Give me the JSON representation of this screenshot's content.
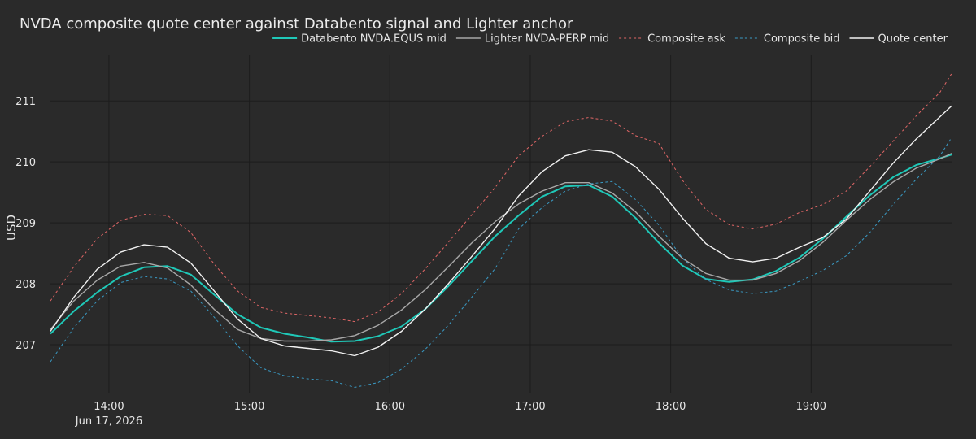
{
  "chart_data": {
    "type": "line",
    "title": "NVDA composite quote center against Databento signal and Lighter anchor",
    "xlabel": "",
    "ylabel": "USD",
    "x_range": [
      "13:35",
      "20:00"
    ],
    "x_ticks": [
      "14:00",
      "15:00",
      "16:00",
      "17:00",
      "18:00",
      "19:00"
    ],
    "x_date_label": "Jun 17, 2026",
    "ylim": [
      206.2,
      211.75
    ],
    "y_ticks": [
      207,
      208,
      209,
      210,
      211
    ],
    "grid": true,
    "legend_position": "top-right",
    "x": [
      "13:35",
      "13:45",
      "13:55",
      "14:05",
      "14:15",
      "14:25",
      "14:35",
      "14:45",
      "14:55",
      "15:05",
      "15:15",
      "15:25",
      "15:35",
      "15:45",
      "15:55",
      "16:05",
      "16:15",
      "16:25",
      "16:35",
      "16:45",
      "16:55",
      "17:05",
      "17:15",
      "17:25",
      "17:35",
      "17:45",
      "17:55",
      "18:05",
      "18:15",
      "18:25",
      "18:35",
      "18:45",
      "18:55",
      "19:05",
      "19:15",
      "19:25",
      "19:35",
      "19:45",
      "19:55",
      "20:00"
    ],
    "series": [
      {
        "name": "Databento NVDA.EQUS mid",
        "color": "#1fc8b8",
        "dash": "solid",
        "values": [
          207.18,
          207.55,
          207.86,
          208.12,
          208.27,
          208.29,
          208.15,
          207.82,
          207.5,
          207.28,
          207.18,
          207.12,
          207.05,
          207.06,
          207.14,
          207.3,
          207.58,
          207.96,
          208.37,
          208.78,
          209.12,
          209.43,
          209.6,
          209.62,
          209.43,
          209.08,
          208.67,
          208.3,
          208.08,
          208.03,
          208.07,
          208.21,
          208.43,
          208.74,
          209.1,
          209.45,
          209.75,
          209.95,
          210.06,
          210.12
        ]
      },
      {
        "name": "Lighter NVDA-PERP mid",
        "color": "#a8a8a8",
        "dash": "solid",
        "values": [
          207.25,
          207.72,
          208.06,
          208.29,
          208.35,
          208.26,
          207.98,
          207.58,
          207.25,
          207.1,
          207.06,
          207.06,
          207.08,
          207.15,
          207.32,
          207.57,
          207.9,
          208.28,
          208.67,
          209.02,
          209.31,
          209.52,
          209.66,
          209.66,
          209.49,
          209.18,
          208.78,
          208.42,
          208.17,
          208.06,
          208.06,
          208.17,
          208.38,
          208.68,
          209.04,
          209.38,
          209.67,
          209.9,
          210.05,
          210.14
        ]
      },
      {
        "name": "Composite ask",
        "color": "#e06666",
        "dash": "dot",
        "values": [
          207.72,
          208.28,
          208.74,
          209.04,
          209.14,
          209.12,
          208.84,
          208.32,
          207.88,
          207.61,
          207.52,
          207.48,
          207.44,
          207.38,
          207.54,
          207.84,
          208.24,
          208.68,
          209.13,
          209.58,
          210.1,
          210.42,
          210.66,
          210.73,
          210.67,
          210.43,
          210.3,
          209.7,
          209.22,
          208.97,
          208.9,
          208.98,
          209.17,
          209.3,
          209.52,
          209.92,
          210.34,
          210.76,
          211.14,
          211.45
        ]
      },
      {
        "name": "Composite bid",
        "color": "#3a9ac4",
        "dash": "dot",
        "values": [
          206.72,
          207.28,
          207.72,
          208.02,
          208.12,
          208.08,
          207.88,
          207.45,
          206.98,
          206.62,
          206.49,
          206.44,
          206.41,
          206.3,
          206.38,
          206.6,
          206.92,
          207.32,
          207.78,
          208.25,
          208.9,
          209.25,
          209.52,
          209.64,
          209.68,
          209.38,
          208.96,
          208.42,
          208.07,
          207.9,
          207.84,
          207.88,
          208.04,
          208.22,
          208.46,
          208.84,
          209.3,
          209.72,
          210.1,
          210.4
        ]
      },
      {
        "name": "Quote center",
        "color": "#f2f2f2",
        "dash": "solid",
        "values": [
          207.22,
          207.78,
          208.24,
          208.52,
          208.64,
          208.6,
          208.34,
          207.88,
          207.42,
          207.1,
          206.98,
          206.94,
          206.9,
          206.82,
          206.96,
          207.22,
          207.58,
          208.0,
          208.45,
          208.91,
          209.44,
          209.84,
          210.1,
          210.2,
          210.16,
          209.92,
          209.55,
          209.08,
          208.66,
          208.42,
          208.36,
          208.42,
          208.6,
          208.76,
          209.06,
          209.52,
          209.98,
          210.38,
          210.74,
          210.92
        ]
      }
    ]
  }
}
